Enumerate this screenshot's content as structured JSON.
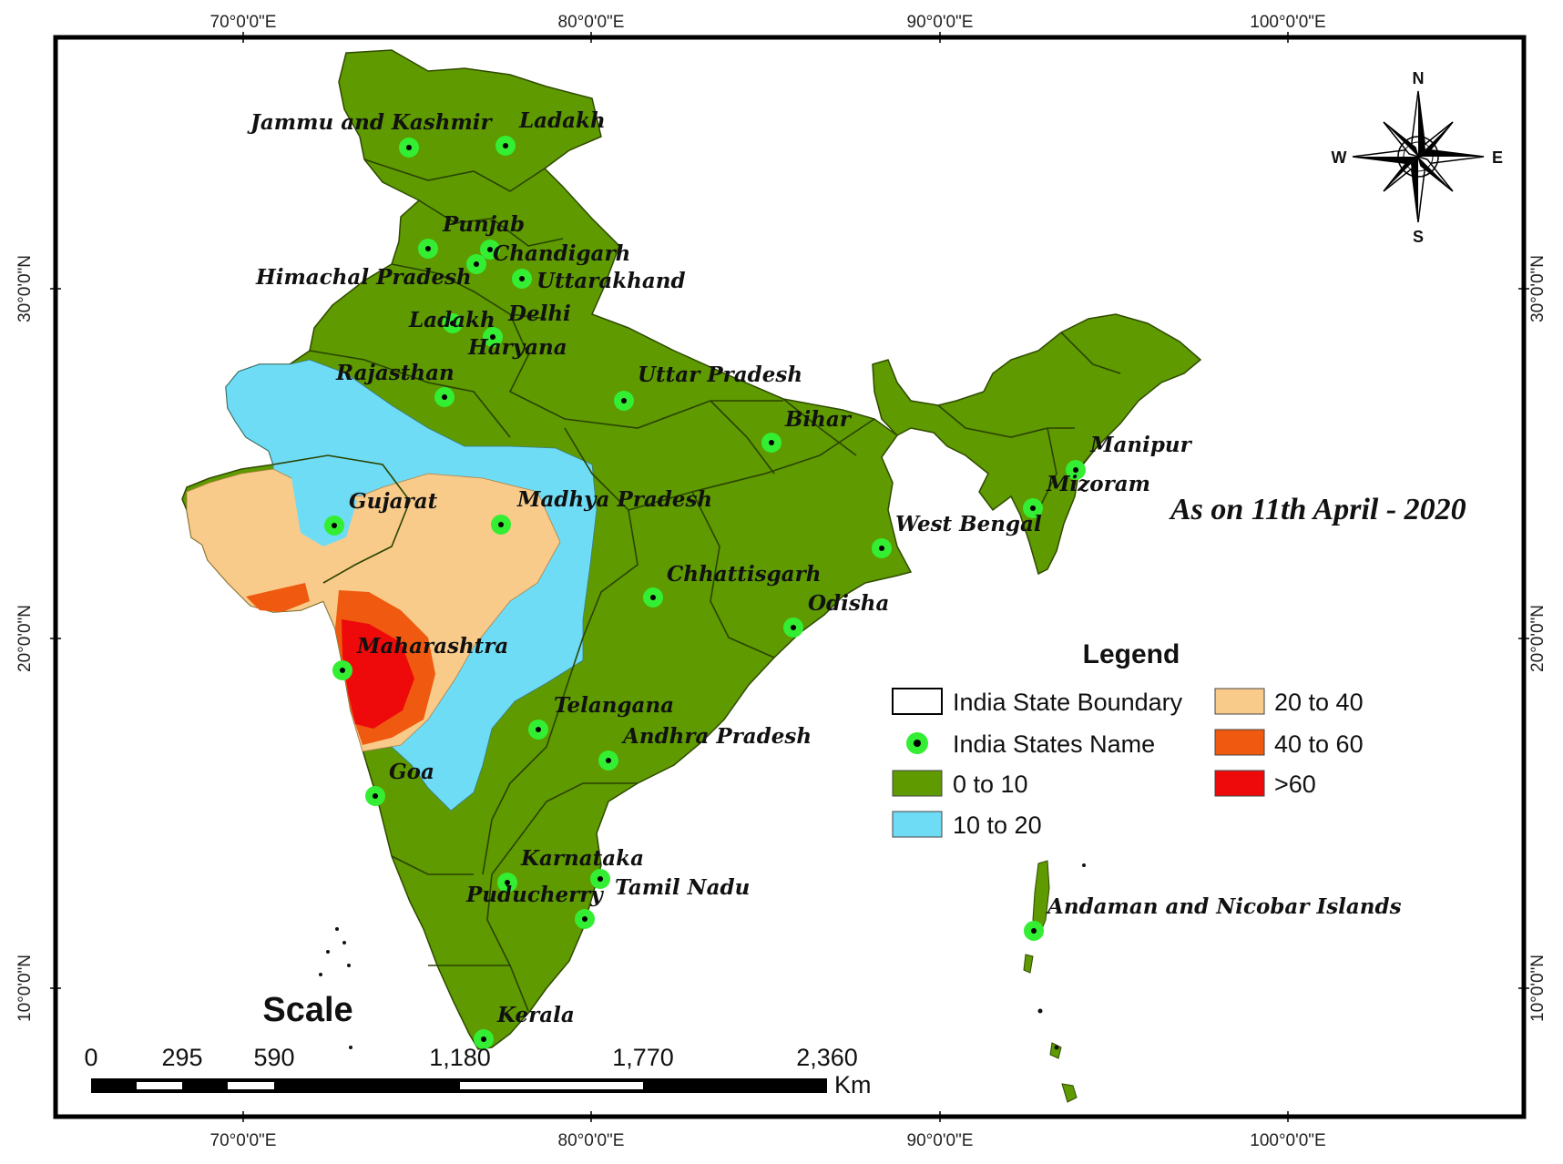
{
  "date_label": "As on 11th April - 2020",
  "graticule": {
    "top_labels": [
      "70°0'0\"E",
      "80°0'0\"E",
      "90°0'0\"E",
      "100°0'0\"E"
    ],
    "bottom_labels": [
      "70°0'0\"E",
      "80°0'0\"E",
      "90°0'0\"E",
      "100°0'0\"E"
    ],
    "left_labels": [
      "30°0'0\"N",
      "20°0'0\"N",
      "10°0'0\"N"
    ],
    "right_labels": [
      "30°0'0\"N",
      "20°0'0\"N",
      "10°0'0\"N"
    ]
  },
  "compass": {
    "n": "N",
    "s": "S",
    "e": "E",
    "w": "W"
  },
  "states": [
    "Jammu and Kashmir",
    "Ladakh",
    "Punjab",
    "Chandigarh",
    "Himachal Pradesh",
    "Uttarakhand",
    "Ladakh",
    "Delhi",
    "Haryana",
    "Rajasthan",
    "Uttar Pradesh",
    "Bihar",
    "Manipur",
    "Mizoram",
    "Gujarat",
    "Madhya Pradesh",
    "West Bengal",
    "Chhattisgarh",
    "Odisha",
    "Maharashtra",
    "Telangana",
    "Andhra Pradesh",
    "Goa",
    "Karnataka",
    "Tamil Nadu",
    "Puducherry",
    "Andaman and Nicobar Islands",
    "Kerala"
  ],
  "legend": {
    "title": "Legend",
    "items": [
      {
        "label": "India State Boundary",
        "color": "#ffffff",
        "kind": "boundary"
      },
      {
        "label": "India States Name",
        "color": "#33ee33",
        "kind": "point"
      },
      {
        "label": "0 to 10",
        "color": "#5e9a00",
        "kind": "fill"
      },
      {
        "label": "10 to 20",
        "color": "#6fdcf5",
        "kind": "fill"
      },
      {
        "label": "20 to 40",
        "color": "#f9cb8a",
        "kind": "fill"
      },
      {
        "label": "40 to 60",
        "color": "#f05a10",
        "kind": "fill"
      },
      {
        "label": ">60",
        "color": "#ee0a0a",
        "kind": "fill"
      }
    ]
  },
  "scale": {
    "title": "Scale",
    "ticks": [
      "0",
      "295",
      "590",
      "1,180",
      "1,770",
      "2,360"
    ],
    "unit": "Km"
  }
}
